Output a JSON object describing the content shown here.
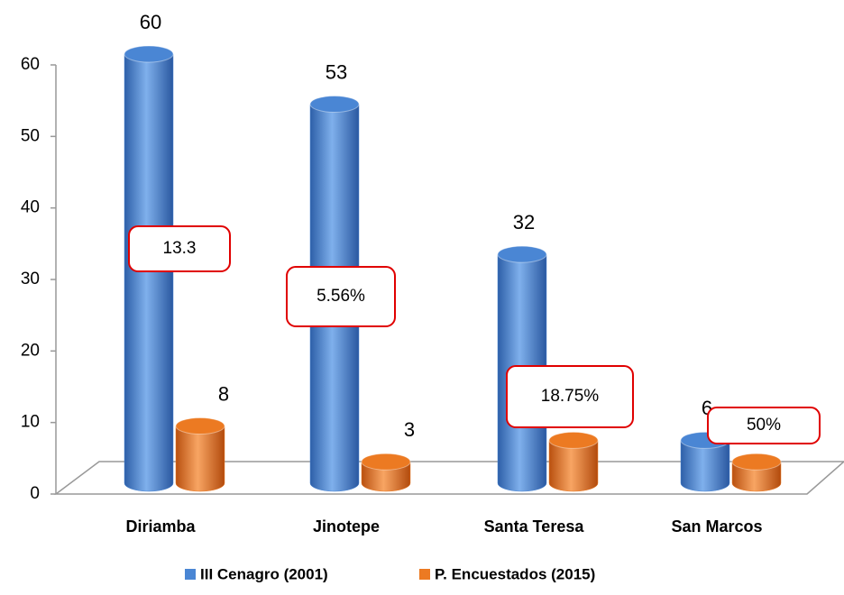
{
  "chart_data": {
    "type": "bar3d",
    "categories": [
      "Diriamba",
      "Jinotepe",
      "Santa Teresa",
      "San Marcos"
    ],
    "series": [
      {
        "name": "III Cenagro (2001)",
        "color": "#4a86d4",
        "values": [
          60,
          53,
          32,
          6
        ],
        "value_labels": [
          "60",
          "53",
          "32",
          "6"
        ]
      },
      {
        "name": "P. Encuestados (2015)",
        "color": "#ec7a22",
        "values": [
          8,
          3,
          6,
          3
        ],
        "value_labels": [
          "8",
          "3",
          null,
          null
        ]
      }
    ],
    "ylim": [
      0,
      60
    ],
    "yticks": [
      0,
      10,
      20,
      30,
      40,
      50,
      60
    ],
    "annotations": [
      "13.3",
      "5.56%",
      "18.75%",
      "50%"
    ],
    "legend": "bottom"
  }
}
